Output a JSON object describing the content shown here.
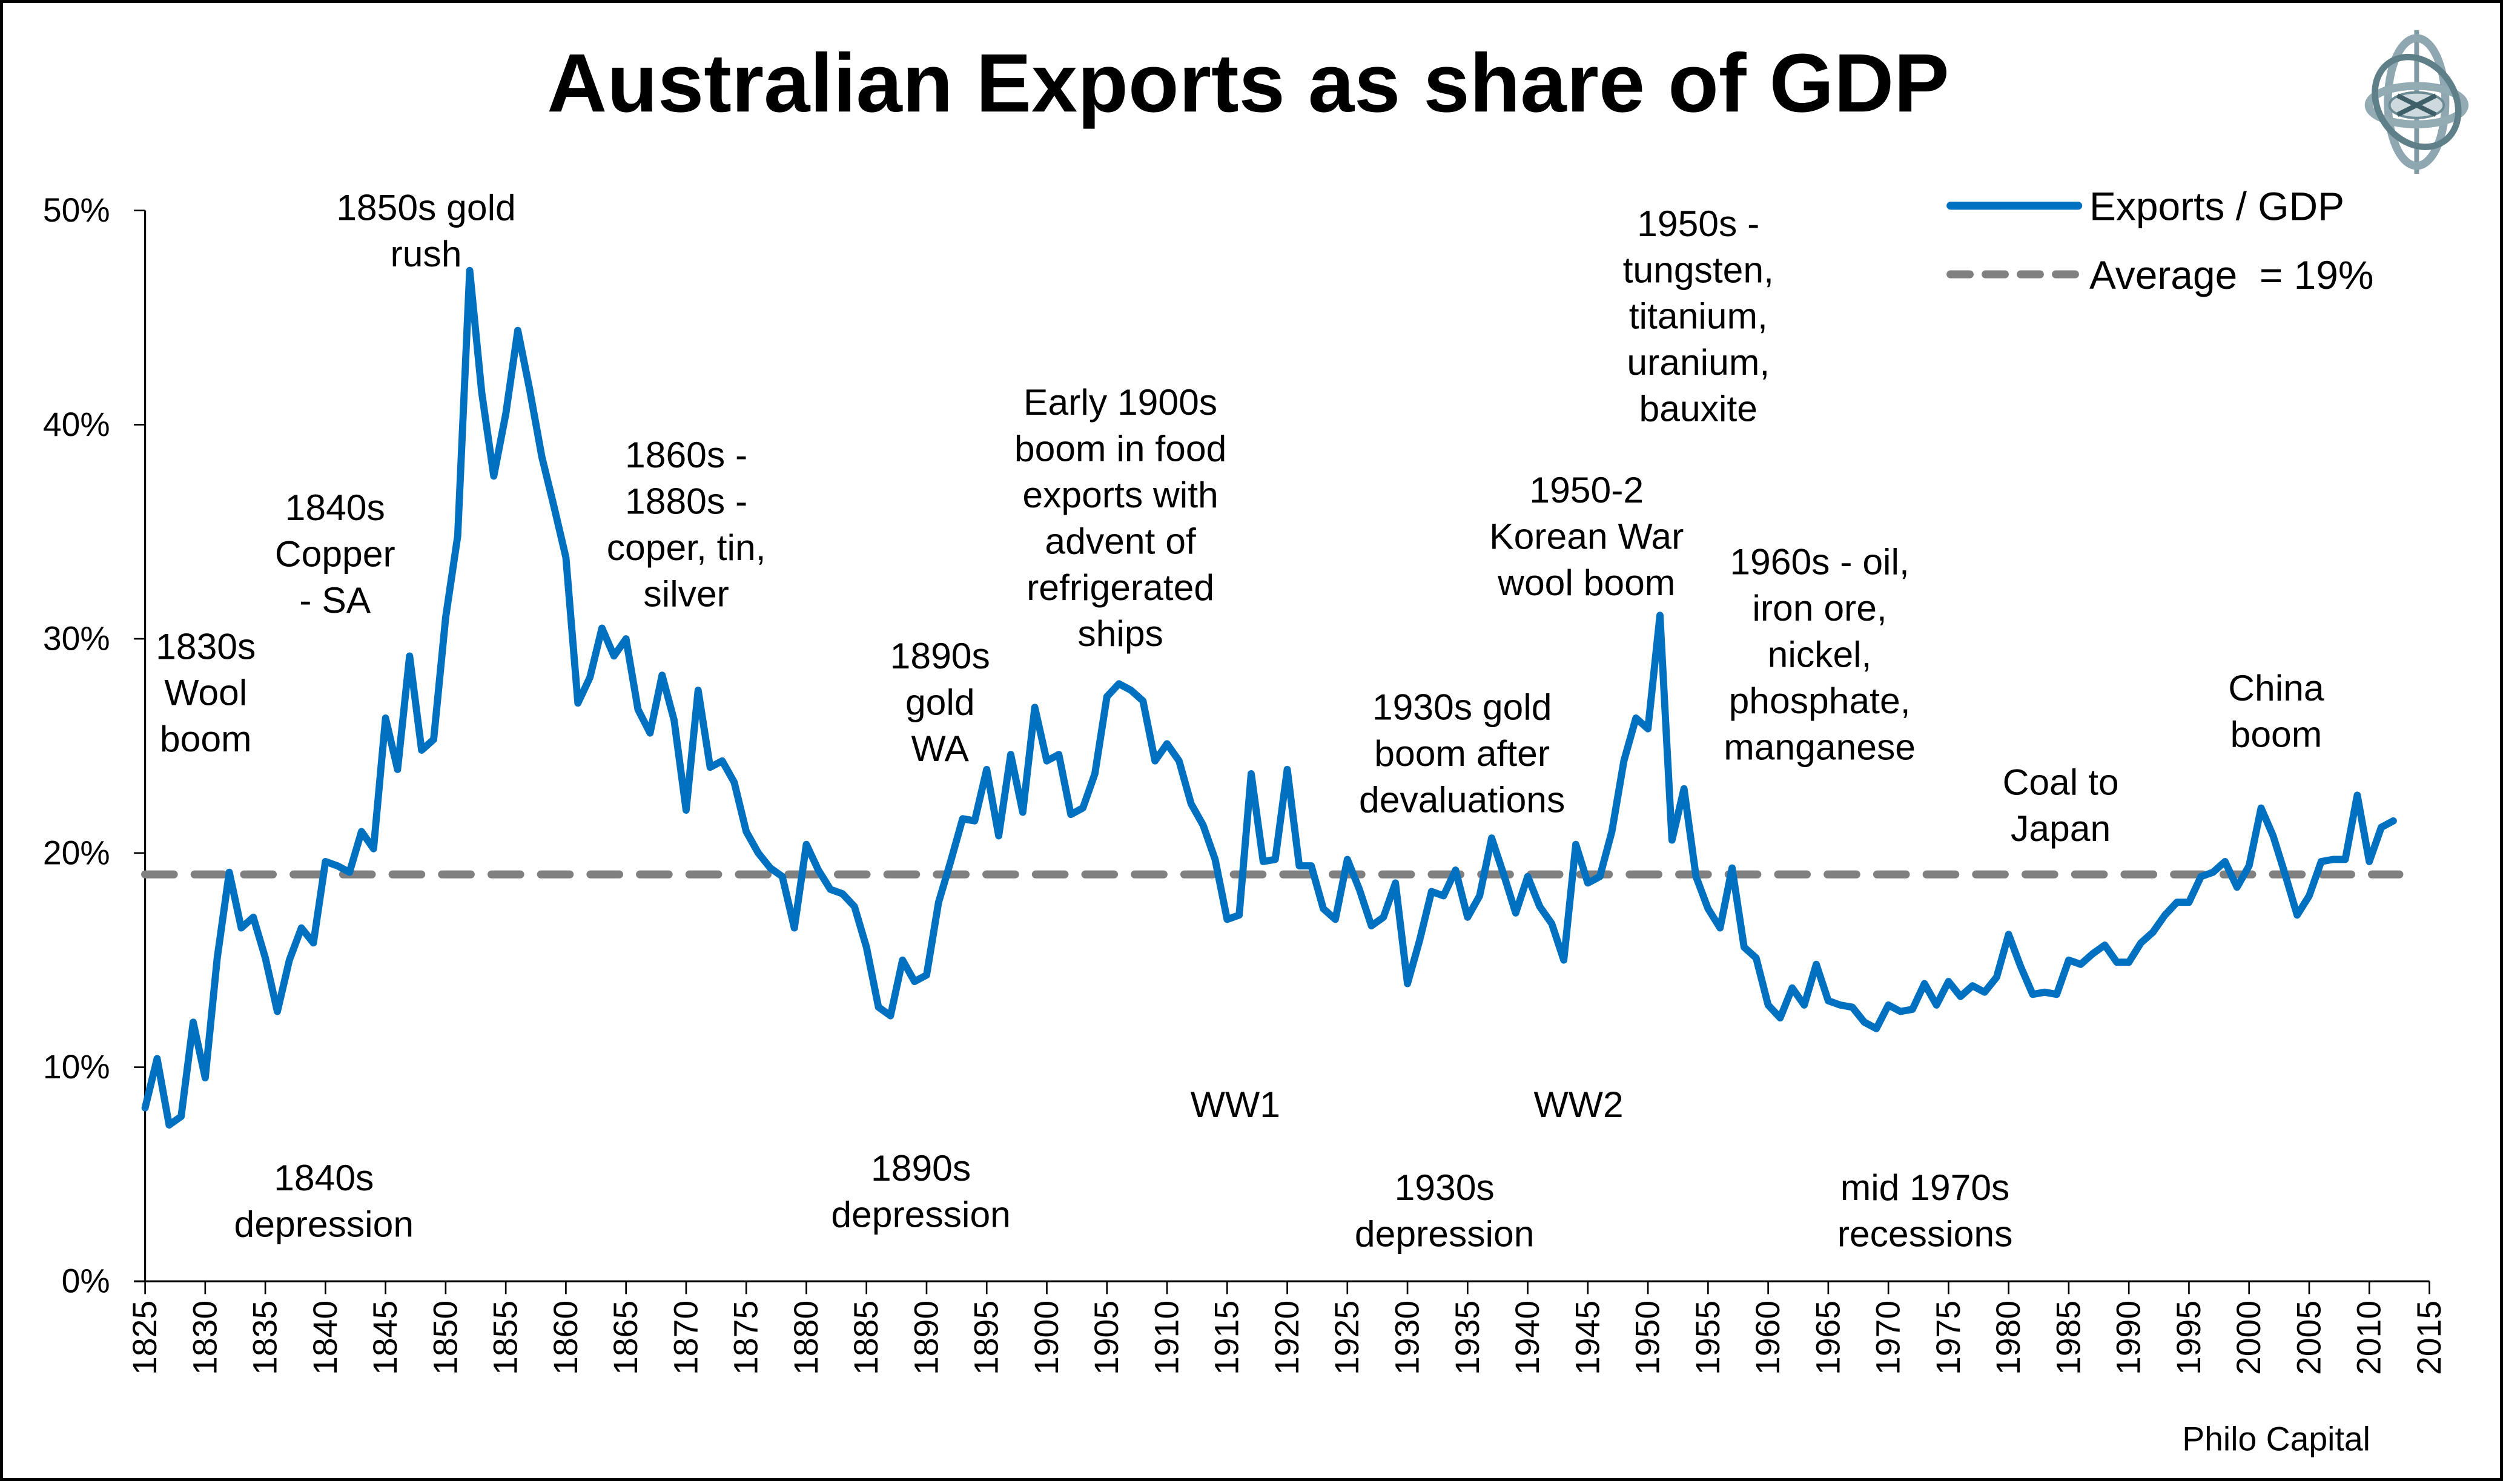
{
  "chart_data": {
    "type": "line",
    "title": "Australian Exports as share of GDP",
    "xlabel": "",
    "ylabel": "",
    "source": "Philo Capital",
    "xlim": [
      1825,
      2015
    ],
    "ylim": [
      0,
      50
    ],
    "y_ticks": [
      "0%",
      "10%",
      "20%",
      "30%",
      "40%",
      "50%"
    ],
    "y_tick_values": [
      0,
      10,
      20,
      30,
      40,
      50
    ],
    "x_ticks": [
      "1825",
      "1830",
      "1835",
      "1840",
      "1845",
      "1850",
      "1855",
      "1860",
      "1865",
      "1870",
      "1875",
      "1880",
      "1885",
      "1890",
      "1895",
      "1900",
      "1905",
      "1910",
      "1915",
      "1920",
      "1925",
      "1930",
      "1935",
      "1940",
      "1945",
      "1950",
      "1955",
      "1960",
      "1965",
      "1970",
      "1975",
      "1980",
      "1985",
      "1990",
      "1995",
      "2000",
      "2005",
      "2010",
      "2015"
    ],
    "x_tick_values": [
      1825,
      1830,
      1835,
      1840,
      1845,
      1850,
      1855,
      1860,
      1865,
      1870,
      1875,
      1880,
      1885,
      1890,
      1895,
      1900,
      1905,
      1910,
      1915,
      1920,
      1925,
      1930,
      1935,
      1940,
      1945,
      1950,
      1955,
      1960,
      1965,
      1970,
      1975,
      1980,
      1985,
      1990,
      1995,
      2000,
      2005,
      2010,
      2015
    ],
    "grid": false,
    "legend_position": "top-right",
    "colors": {
      "exports": "#0070C0",
      "average": "#808080"
    },
    "series": [
      {
        "name": "Exports / GDP",
        "style": "solid",
        "x_start": 1825,
        "values": [
          8.1,
          10.4,
          7.3,
          7.7,
          12.1,
          9.5,
          15.1,
          19.1,
          16.5,
          17.0,
          15.1,
          12.6,
          15.0,
          16.5,
          15.8,
          19.6,
          19.4,
          19.1,
          21.0,
          20.2,
          26.3,
          23.9,
          29.2,
          24.8,
          25.3,
          31.0,
          34.8,
          47.2,
          41.5,
          37.6,
          40.5,
          44.4,
          41.6,
          38.5,
          36.2,
          33.8,
          27.0,
          28.2,
          30.5,
          29.2,
          30.0,
          26.7,
          25.6,
          28.3,
          26.2,
          22.0,
          27.6,
          24.0,
          24.3,
          23.3,
          21.0,
          20.0,
          19.3,
          18.9,
          16.5,
          20.4,
          19.2,
          18.3,
          18.1,
          17.5,
          15.6,
          12.8,
          12.4,
          15.0,
          14.0,
          14.3,
          17.7,
          19.6,
          21.6,
          21.5,
          23.9,
          20.8,
          24.6,
          21.9,
          26.8,
          24.3,
          24.6,
          21.8,
          22.1,
          23.7,
          27.3,
          27.9,
          27.6,
          27.1,
          24.3,
          25.1,
          24.3,
          22.3,
          21.3,
          19.7,
          16.9,
          17.1,
          23.7,
          19.6,
          19.7,
          23.9,
          19.4,
          19.4,
          17.4,
          16.9,
          19.7,
          18.3,
          16.6,
          17.0,
          18.6,
          13.9,
          15.9,
          18.2,
          18.0,
          19.2,
          17.0,
          18.0,
          20.7,
          19.0,
          17.2,
          18.9,
          17.5,
          16.7,
          15.0,
          20.4,
          18.6,
          18.9,
          21.0,
          24.3,
          26.3,
          25.8,
          31.1,
          20.6,
          23.0,
          18.9,
          17.4,
          16.5,
          19.3,
          15.6,
          15.1,
          12.9,
          12.3,
          13.7,
          12.9,
          14.8,
          13.1,
          12.9,
          12.8,
          12.1,
          11.8,
          12.9,
          12.6,
          12.7,
          13.9,
          12.9,
          14.0,
          13.3,
          13.8,
          13.5,
          14.2,
          16.2,
          14.7,
          13.4,
          13.5,
          13.4,
          15.0,
          14.8,
          15.3,
          15.7,
          14.9,
          14.9,
          15.8,
          16.3,
          17.1,
          17.7,
          17.7,
          18.9,
          19.1,
          19.6,
          18.4,
          19.4,
          22.1,
          20.8,
          19.0,
          17.1,
          18.0,
          19.6,
          19.7,
          19.7,
          22.7,
          19.6,
          21.2,
          21.5
        ]
      },
      {
        "name": "Average  = 19%",
        "style": "dashed",
        "constant": 19
      }
    ],
    "annotations": [
      {
        "id": "1830s-wool",
        "lines": [
          "1830s",
          "Wool",
          "boom"
        ]
      },
      {
        "id": "1840s-copper",
        "lines": [
          "1840s",
          "Copper",
          "- SA"
        ]
      },
      {
        "id": "1850s-gold",
        "lines": [
          "1850s gold",
          "rush"
        ]
      },
      {
        "id": "1860s-1880s",
        "lines": [
          "1860s -",
          "1880s -",
          "coper, tin,",
          "silver"
        ]
      },
      {
        "id": "1840s-depression",
        "lines": [
          "1840s",
          "depression"
        ]
      },
      {
        "id": "1890s-gold",
        "lines": [
          "1890s",
          "gold",
          "WA"
        ]
      },
      {
        "id": "1890s-depression",
        "lines": [
          "1890s",
          "depression"
        ]
      },
      {
        "id": "early-1900s",
        "lines": [
          "Early 1900s",
          "boom in food",
          "exports with",
          "advent of",
          "refrigerated",
          "ships"
        ]
      },
      {
        "id": "ww1",
        "lines": [
          "WW1"
        ]
      },
      {
        "id": "1930s-gold",
        "lines": [
          "1930s gold",
          "boom after",
          "devaluations"
        ]
      },
      {
        "id": "1930s-depression",
        "lines": [
          "1930s",
          "depression"
        ]
      },
      {
        "id": "ww2",
        "lines": [
          "WW2"
        ]
      },
      {
        "id": "korean-war",
        "lines": [
          "1950-2",
          "Korean War",
          "wool boom"
        ]
      },
      {
        "id": "1950s-minerals",
        "lines": [
          "1950s -",
          "tungsten,",
          "titanium,",
          "uranium,",
          "bauxite"
        ]
      },
      {
        "id": "1960s-minerals",
        "lines": [
          "1960s - oil,",
          "iron ore,",
          "nickel,",
          "phosphate,",
          "manganese"
        ]
      },
      {
        "id": "mid-1970s",
        "lines": [
          "mid 1970s",
          "recessions"
        ]
      },
      {
        "id": "coal-japan",
        "lines": [
          "Coal to",
          "Japan"
        ]
      },
      {
        "id": "china-boom",
        "lines": [
          "China",
          "boom"
        ]
      }
    ]
  },
  "logo": {
    "icon": "gyroscope-icon"
  }
}
